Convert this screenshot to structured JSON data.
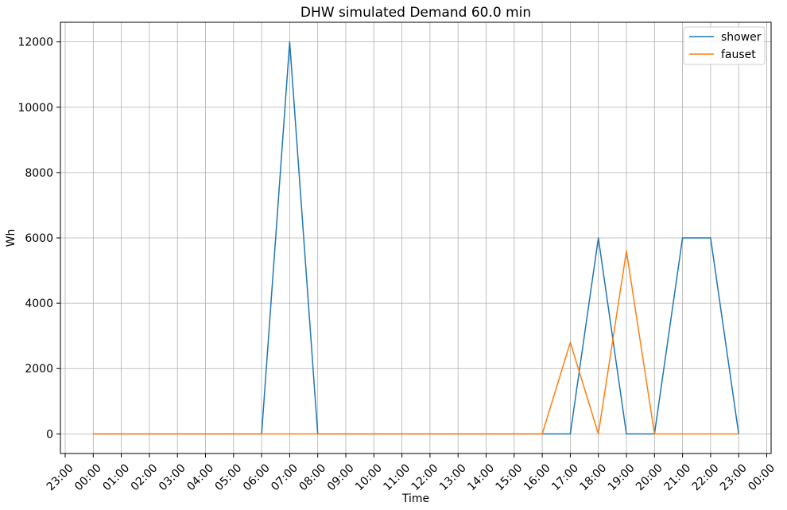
{
  "chart_data": {
    "type": "line",
    "title": "DHW simulated Demand 60.0 min",
    "xlabel": "Time",
    "ylabel": "Wh",
    "x_tick_labels": [
      "23:00",
      "00:00",
      "01:00",
      "02:00",
      "03:00",
      "04:00",
      "05:00",
      "06:00",
      "07:00",
      "08:00",
      "09:00",
      "10:00",
      "11:00",
      "12:00",
      "13:00",
      "14:00",
      "15:00",
      "16:00",
      "17:00",
      "18:00",
      "19:00",
      "20:00",
      "21:00",
      "22:00",
      "23:00",
      "00:00"
    ],
    "x": [
      "00:00",
      "01:00",
      "02:00",
      "03:00",
      "04:00",
      "05:00",
      "06:00",
      "07:00",
      "08:00",
      "09:00",
      "10:00",
      "11:00",
      "12:00",
      "13:00",
      "14:00",
      "15:00",
      "16:00",
      "17:00",
      "18:00",
      "19:00",
      "20:00",
      "21:00",
      "22:00",
      "23:00"
    ],
    "ylim": [
      -600,
      12600
    ],
    "y_ticks": [
      0,
      2000,
      4000,
      6000,
      8000,
      10000,
      12000
    ],
    "grid": true,
    "legend_position": "top-right",
    "series": [
      {
        "name": "shower",
        "color": "#1f77b4",
        "values": [
          0,
          0,
          0,
          0,
          0,
          0,
          0,
          12000,
          0,
          0,
          0,
          0,
          0,
          0,
          0,
          0,
          0,
          0,
          6000,
          0,
          0,
          6000,
          6000,
          0
        ]
      },
      {
        "name": "fauset",
        "color": "#ff7f0e",
        "values": [
          0,
          0,
          0,
          0,
          0,
          0,
          0,
          0,
          0,
          0,
          0,
          0,
          0,
          0,
          0,
          0,
          0,
          2800,
          0,
          5600,
          0,
          0,
          0,
          0
        ]
      }
    ]
  }
}
